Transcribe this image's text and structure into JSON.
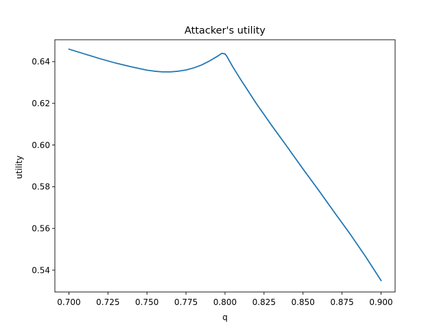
{
  "chart_data": {
    "type": "line",
    "title": "Attacker's utility",
    "xlabel": "q",
    "ylabel": "utility",
    "xlim": [
      0.691,
      0.909
    ],
    "ylim": [
      0.5295,
      0.6505
    ],
    "xticks": [
      0.7,
      0.725,
      0.75,
      0.775,
      0.8,
      0.825,
      0.85,
      0.875,
      0.9
    ],
    "xtick_labels": [
      "0.700",
      "0.725",
      "0.750",
      "0.775",
      "0.800",
      "0.825",
      "0.850",
      "0.875",
      "0.900"
    ],
    "yticks": [
      0.54,
      0.56,
      0.58,
      0.6,
      0.62,
      0.64
    ],
    "ytick_labels": [
      "0.54",
      "0.56",
      "0.58",
      "0.60",
      "0.62",
      "0.64"
    ],
    "grid": false,
    "line_color": "#1f77b4",
    "series": [
      {
        "x": [
          0.7,
          0.71,
          0.72,
          0.73,
          0.74,
          0.75,
          0.755,
          0.76,
          0.765,
          0.77,
          0.775,
          0.78,
          0.785,
          0.79,
          0.795,
          0.798,
          0.8,
          0.801,
          0.805,
          0.81,
          0.82,
          0.83,
          0.84,
          0.85,
          0.86,
          0.87,
          0.88,
          0.89,
          0.9
        ],
        "y": [
          0.646,
          0.6437,
          0.6414,
          0.6393,
          0.6375,
          0.6359,
          0.6354,
          0.6351,
          0.6351,
          0.6354,
          0.636,
          0.637,
          0.6384,
          0.6403,
          0.6425,
          0.644,
          0.6437,
          0.6428,
          0.6375,
          0.6315,
          0.62,
          0.6093,
          0.599,
          0.5885,
          0.5783,
          0.5678,
          0.5575,
          0.5466,
          0.535
        ]
      }
    ]
  }
}
